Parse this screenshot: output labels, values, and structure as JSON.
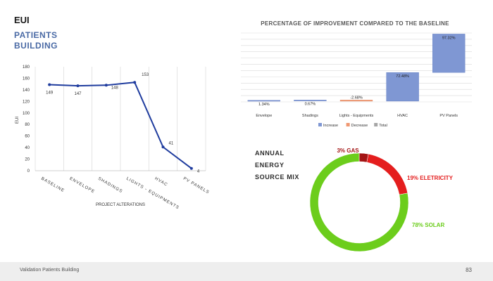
{
  "slide": {
    "title": "EUI",
    "subtitle": "PATIENTS BUILDING"
  },
  "energy_mix": {
    "labels": [
      "ANNUAL",
      "ENERGY",
      "SOURCE MIX"
    ]
  },
  "footer": {
    "left": "Validation Patients Building",
    "page_number": "83"
  },
  "colors": {
    "line": "#1f3c9e",
    "increase": "#7f97d3",
    "decrease": "#ef9872",
    "gas": "#a31515",
    "electricity": "#e41e1e",
    "solar": "#6ccd1c"
  },
  "chart_data": [
    {
      "type": "line",
      "title": "",
      "xlabel": "PROJECT ALTERATIONS",
      "ylabel": "EUI",
      "categories": [
        "BASELINE",
        "ENVELOPE",
        "SHADINGS",
        "LIGHTS - EQUIPMENTS",
        "HVAC",
        "PV PANELS"
      ],
      "values": [
        149,
        147,
        148,
        153,
        41,
        4
      ],
      "y_ticks": [
        0,
        20,
        40,
        60,
        80,
        100,
        120,
        140,
        160,
        180
      ],
      "ylim": [
        0,
        180
      ],
      "grid": "vertical"
    },
    {
      "type": "bar",
      "title": "PERCENTAGE OF IMPROVEMENT COMPARED TO THE BASELINE",
      "categories": [
        "Envelope",
        "Shadings",
        "Lights - Equipments",
        "HVAC",
        "PV Panels"
      ],
      "values": [
        1.34,
        0.67,
        -2.68,
        72.48,
        97.32
      ],
      "data_labels": [
        "1.34%",
        "0.67%",
        "-2.68%",
        "72.48%",
        "97.32%"
      ],
      "legend": [
        "Increase",
        "Decrease",
        "Total"
      ],
      "legend_position": "bottom",
      "grid": "horizontal"
    },
    {
      "type": "pie",
      "title": "",
      "labels": [
        "3% GAS",
        "19% ELETRICITY",
        "78% SOLAR"
      ],
      "values": [
        3,
        19,
        78
      ]
    }
  ]
}
